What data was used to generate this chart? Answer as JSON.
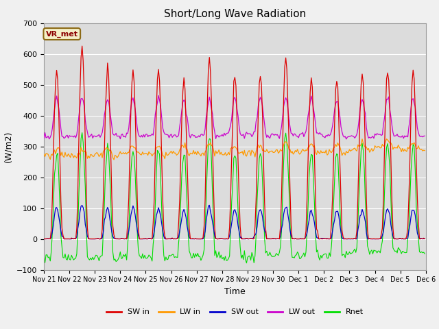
{
  "title": "Short/Long Wave Radiation",
  "xlabel": "Time",
  "ylabel": "(W/m2)",
  "station_label": "VR_met",
  "xlim": [
    0,
    360
  ],
  "ylim": [
    -100,
    700
  ],
  "yticks": [
    -100,
    0,
    100,
    200,
    300,
    400,
    500,
    600,
    700
  ],
  "xtick_labels": [
    "Nov 21",
    "Nov 22",
    "Nov 23",
    "Nov 24",
    "Nov 25",
    "Nov 26",
    "Nov 27",
    "Nov 28",
    "Nov 29",
    "Nov 30",
    "Dec 1",
    "Dec 2",
    "Dec 3",
    "Dec 4",
    "Dec 5",
    "Dec 6"
  ],
  "xtick_positions": [
    0,
    24,
    48,
    72,
    96,
    120,
    144,
    168,
    192,
    216,
    240,
    264,
    288,
    312,
    336,
    360
  ],
  "colors": {
    "SW_in": "#dd0000",
    "LW_in": "#ff9900",
    "SW_out": "#0000cc",
    "LW_out": "#cc00cc",
    "Rnet": "#00dd00"
  },
  "legend_labels": [
    "SW in",
    "LW in",
    "SW out",
    "LW out",
    "Rnet"
  ],
  "background_color": "#dcdcdc",
  "fig_background": "#f0f0f0",
  "grid_color": "#ffffff"
}
